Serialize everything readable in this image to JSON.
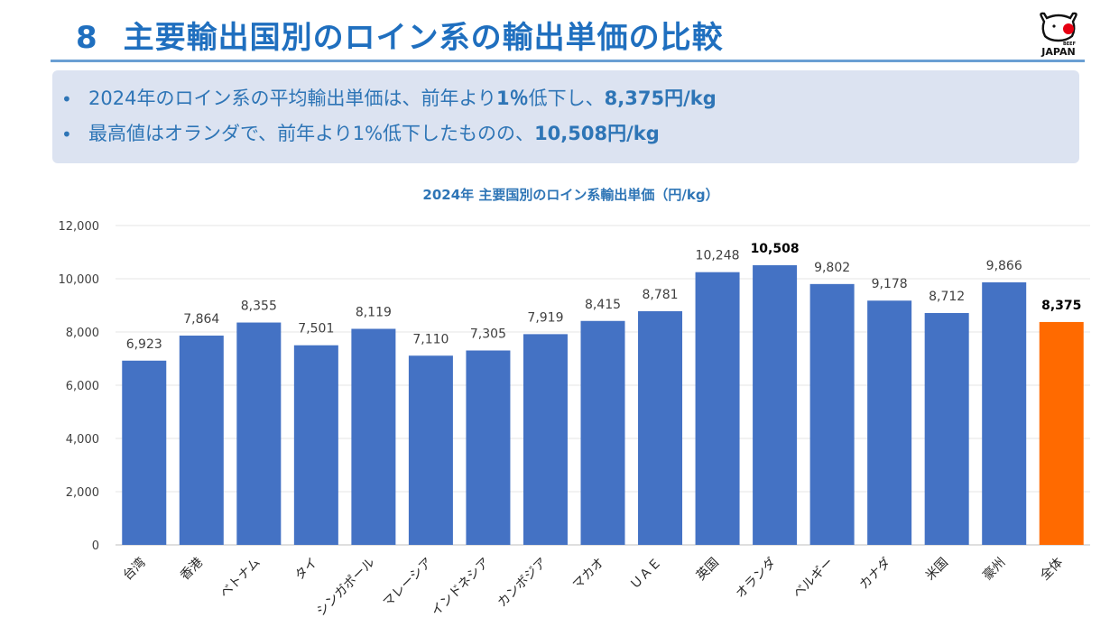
{
  "slide": {
    "number": "8",
    "title": "主要輸出国別のロイン系の輸出単価の比較"
  },
  "logo": {
    "small_text": "BEEF",
    "main_text": "JAPAN",
    "icon": "wagyu-beef-logo-icon"
  },
  "summary": {
    "bullets": [
      {
        "text_before": "2024年のロイン系の平均輸出単価は、前年より",
        "bold1": "1％",
        "text_mid": "低下し、",
        "bold2": "8,375円/kg"
      },
      {
        "text_before": "最高値はオランダで、前年より1%低下したものの、",
        "bold1": "",
        "text_mid": "",
        "bold2": "10,508円/kg"
      }
    ]
  },
  "colors": {
    "accent": "#1f6fbf",
    "bar": "#4472c4",
    "highlight_bar": "#ff6a00",
    "summary_bg": "#dce3f1"
  },
  "chart_data": {
    "type": "bar",
    "title": "2024年 主要国別のロイン系輸出単価（円/kg）",
    "xlabel": "",
    "ylabel": "",
    "ylim": [
      0,
      12000
    ],
    "yticks": [
      0,
      2000,
      4000,
      6000,
      8000,
      10000,
      12000
    ],
    "ytick_labels": [
      "0",
      "2,000",
      "4,000",
      "6,000",
      "8,000",
      "10,000",
      "12,000"
    ],
    "grid": true,
    "categories": [
      "台湾",
      "香港",
      "ベトナム",
      "タイ",
      "シンガポール",
      "マレーシア",
      "インドネシア",
      "カンボジア",
      "マカオ",
      "ＵＡＥ",
      "英国",
      "オランダ",
      "ベルギー",
      "カナダ",
      "米国",
      "豪州",
      "全体"
    ],
    "values": [
      6923,
      7864,
      8355,
      7501,
      8119,
      7110,
      7305,
      7919,
      8415,
      8781,
      10248,
      10508,
      9802,
      9178,
      8712,
      9866,
      8375
    ],
    "value_labels": [
      "6,923",
      "7,864",
      "8,355",
      "7,501",
      "8,119",
      "7,110",
      "7,305",
      "7,919",
      "8,415",
      "8,781",
      "10,248",
      "10,508",
      "9,802",
      "9,178",
      "8,712",
      "9,866",
      "8,375"
    ],
    "bold_labels": [
      "オランダ",
      "全体"
    ],
    "highlight_category": "全体"
  }
}
